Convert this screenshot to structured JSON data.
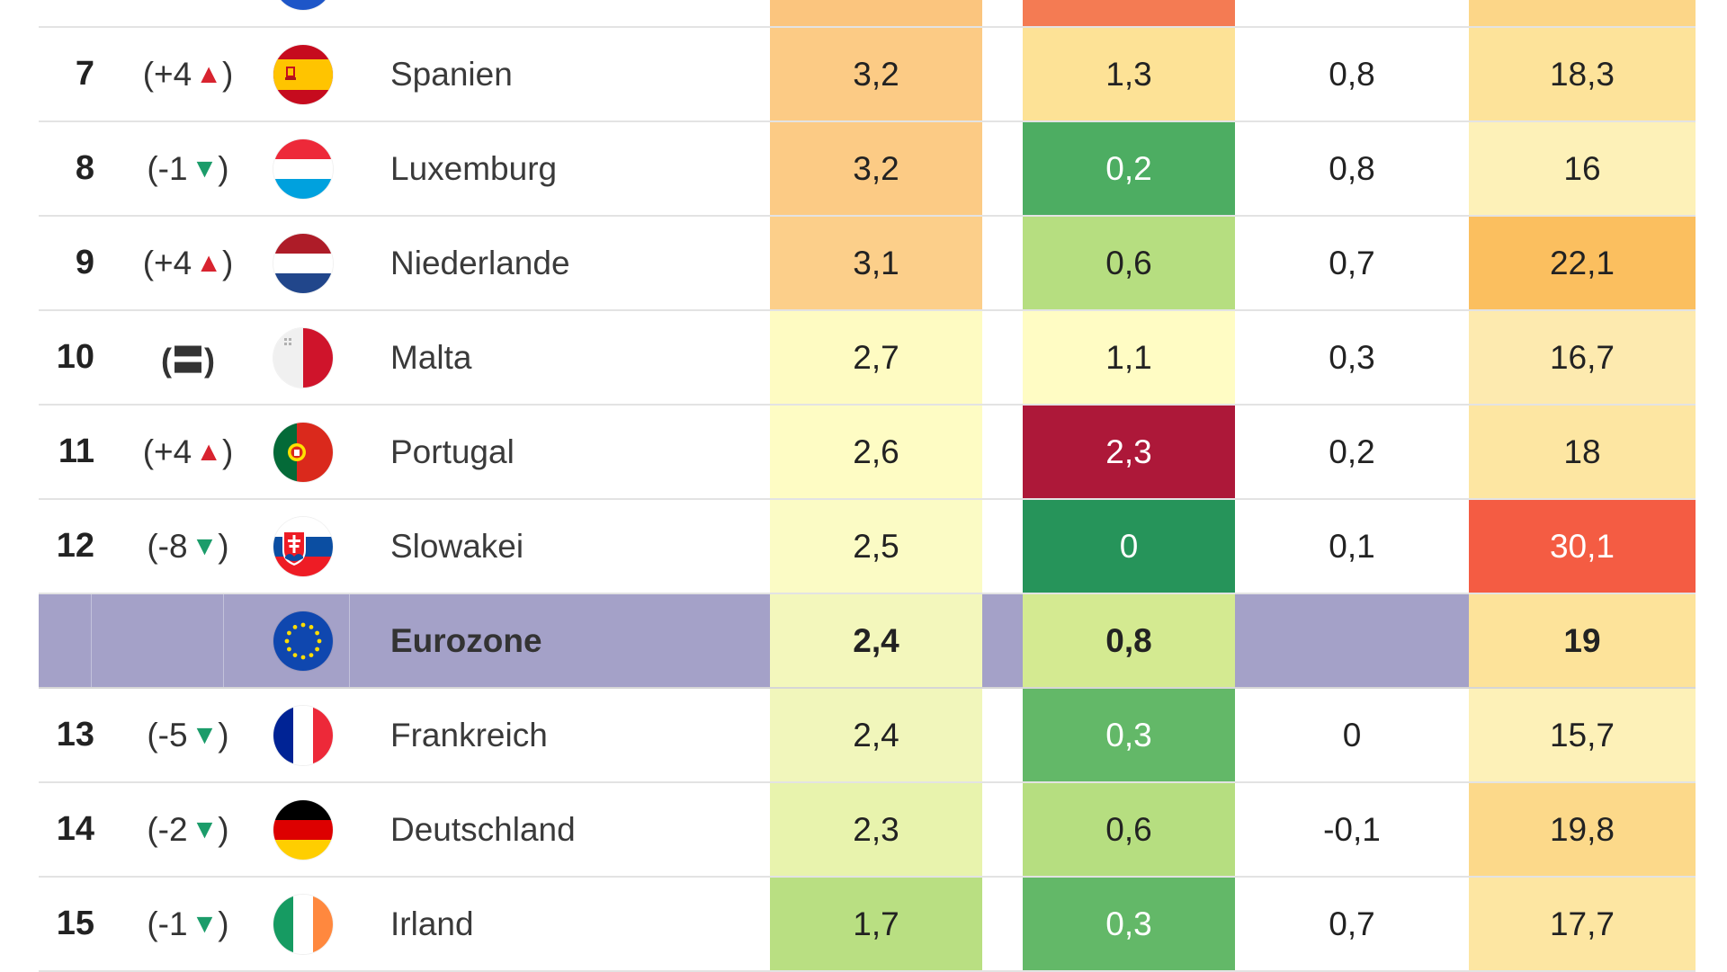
{
  "rows": [
    {
      "rank": "",
      "change": "",
      "dir": "",
      "country": "",
      "flag": "partial-blue",
      "v1": "",
      "v1_color": "#fbc57e",
      "v2": "",
      "v2_color": "#f47b53",
      "v3": "",
      "v3_color": "",
      "v4": "",
      "v4_color": "#fcd688"
    },
    {
      "rank": "7",
      "change": "(+4",
      "dir": "up",
      "country": "Spanien",
      "flag": "spain",
      "v1": "3,2",
      "v1_color": "#fccb85",
      "v2": "1,3",
      "v2_color": "#fde296",
      "v3": "0,8",
      "v3_color": "",
      "v4": "18,3",
      "v4_color": "#fde39a"
    },
    {
      "rank": "8",
      "change": "(-1",
      "dir": "down",
      "country": "Luxemburg",
      "flag": "luxembourg",
      "v1": "3,2",
      "v1_color": "#fccb85",
      "v2": "0,2",
      "v2_color": "#4dad62",
      "v3": "0,8",
      "v3_color": "",
      "v4": "16",
      "v4_color": "#fdf1b8"
    },
    {
      "rank": "9",
      "change": "(+4",
      "dir": "up",
      "country": "Niederlande",
      "flag": "netherlands",
      "v1": "3,1",
      "v1_color": "#fccf8a",
      "v2": "0,6",
      "v2_color": "#b6de80",
      "v3": "0,7",
      "v3_color": "",
      "v4": "22,1",
      "v4_color": "#fbbf5f"
    },
    {
      "rank": "10",
      "change": "",
      "dir": "equal",
      "country": "Malta",
      "flag": "malta",
      "v1": "2,7",
      "v1_color": "#fefbc2",
      "v2": "1,1",
      "v2_color": "#fffcc4",
      "v3": "0,3",
      "v3_color": "",
      "v4": "16,7",
      "v4_color": "#fdeaaf"
    },
    {
      "rank": "11",
      "change": "(+4",
      "dir": "up",
      "country": "Portugal",
      "flag": "portugal",
      "v1": "2,6",
      "v1_color": "#fefcc4",
      "v2": "2,3",
      "v2_color": "#ad1839",
      "v3": "0,2",
      "v3_color": "",
      "v4": "18",
      "v4_color": "#fde6a2"
    },
    {
      "rank": "12",
      "change": "(-8",
      "dir": "down",
      "country": "Slowakei",
      "flag": "slovakia",
      "v1": "2,5",
      "v1_color": "#fbfbc5",
      "v2": "0",
      "v2_color": "#26945a",
      "v3": "0,1",
      "v3_color": "",
      "v4": "30,1",
      "v4_color": "#f45c43"
    },
    {
      "rank": "",
      "change": "",
      "dir": "",
      "country": "Eurozone",
      "flag": "eu",
      "eurozone": true,
      "v1": "2,4",
      "v1_color": "#f3f7bc",
      "v2": "0,8",
      "v2_color": "#d4ea91",
      "v3": "",
      "v3_color": "",
      "v4": "19",
      "v4_color": "#fde39a"
    },
    {
      "rank": "13",
      "change": "(-5",
      "dir": "down",
      "country": "Frankreich",
      "flag": "france",
      "v1": "2,4",
      "v1_color": "#f1f6bb",
      "v2": "0,3",
      "v2_color": "#63b868",
      "v3": "0",
      "v3_color": "",
      "v4": "15,7",
      "v4_color": "#fdf1b8"
    },
    {
      "rank": "14",
      "change": "(-2",
      "dir": "down",
      "country": "Deutschland",
      "flag": "germany",
      "v1": "2,3",
      "v1_color": "#e8f3ad",
      "v2": "0,6",
      "v2_color": "#b6de80",
      "v3": "-0,1",
      "v3_color": "",
      "v4": "19,8",
      "v4_color": "#fcd98a"
    },
    {
      "rank": "15",
      "change": "(-1",
      "dir": "down",
      "country": "Irland",
      "flag": "ireland",
      "v1": "1,7",
      "v1_color": "#b9df82",
      "v2": "0,3",
      "v2_color": "#63b868",
      "v3": "0,7",
      "v3_color": "",
      "v4": "17,7",
      "v4_color": "#fde6a2"
    }
  ],
  "colors": {
    "eurozone_row_bg": "#a4a1c8",
    "arrow_up": "#d8232f",
    "arrow_down": "#1b9c6a"
  },
  "glyphs": {
    "arrow_up": "▲",
    "arrow_down": "▼",
    "close_paren": ")",
    "equal": "(〓)"
  }
}
